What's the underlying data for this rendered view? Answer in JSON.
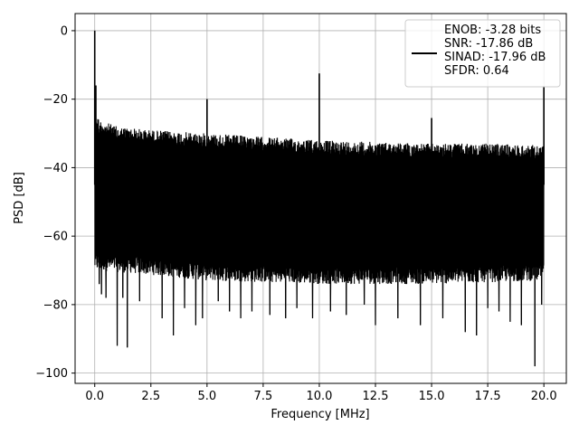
{
  "chart_data": {
    "type": "line",
    "title": "",
    "xlabel": "Frequency [MHz]",
    "ylabel": "PSD [dB]",
    "xlim": [
      -0.875,
      21.0
    ],
    "ylim": [
      -103.0,
      5.0
    ],
    "xticks": [
      0.0,
      2.5,
      5.0,
      7.5,
      10.0,
      12.5,
      15.0,
      17.5,
      20.0
    ],
    "xtick_labels": [
      "0.0",
      "2.5",
      "5.0",
      "7.5",
      "10.0",
      "12.5",
      "15.0",
      "17.5",
      "20.0"
    ],
    "yticks": [
      0,
      -20,
      -40,
      -60,
      -80,
      -100
    ],
    "ytick_labels": [
      "0",
      "−20",
      "−40",
      "−60",
      "−80",
      "−100"
    ],
    "grid": true,
    "legend_position": "top-right",
    "series": [
      {
        "name": "ENOB: -3.28 bits\nSNR: -17.86 dB\nSINAD: -17.96 dB\nSFDR: 0.64",
        "legend_lines": [
          "ENOB: -3.28 bits",
          "SNR: -17.86 dB",
          "SINAD: -17.96 dB",
          "SFDR: 0.64"
        ],
        "color": "#000000",
        "noise_ceiling": [
          [
            0.0,
            -22
          ],
          [
            0.2,
            -25
          ],
          [
            1.0,
            -27
          ],
          [
            2.5,
            -28
          ],
          [
            5.0,
            -29
          ],
          [
            7.5,
            -30
          ],
          [
            10.0,
            -31
          ],
          [
            12.5,
            -31.5
          ],
          [
            15.0,
            -32
          ],
          [
            17.5,
            -32
          ],
          [
            20.0,
            -32.5
          ]
        ],
        "noise_floor": [
          [
            0.0,
            -72
          ],
          [
            2.0,
            -73
          ],
          [
            5.0,
            -75
          ],
          [
            10.0,
            -76
          ],
          [
            15.0,
            -76
          ],
          [
            20.0,
            -75
          ]
        ],
        "spikes": [
          {
            "x": 0.0,
            "y": 0
          },
          {
            "x": 0.05,
            "y": -16
          },
          {
            "x": 5.0,
            "y": -20
          },
          {
            "x": 10.0,
            "y": -12.5
          },
          {
            "x": 15.0,
            "y": -25.5
          },
          {
            "x": 20.0,
            "y": -16.5
          }
        ],
        "dips": [
          {
            "x": 0.2,
            "y": -74
          },
          {
            "x": 0.3,
            "y": -77
          },
          {
            "x": 0.5,
            "y": -78
          },
          {
            "x": 1.0,
            "y": -92
          },
          {
            "x": 1.25,
            "y": -78
          },
          {
            "x": 1.45,
            "y": -92.5
          },
          {
            "x": 2.0,
            "y": -79
          },
          {
            "x": 3.0,
            "y": -84
          },
          {
            "x": 3.5,
            "y": -79
          },
          {
            "x": 3.5,
            "y": -89
          },
          {
            "x": 4.0,
            "y": -81
          },
          {
            "x": 4.5,
            "y": -86
          },
          {
            "x": 4.8,
            "y": -84
          },
          {
            "x": 5.5,
            "y": -79
          },
          {
            "x": 6.0,
            "y": -82
          },
          {
            "x": 6.5,
            "y": -84
          },
          {
            "x": 7.0,
            "y": -82
          },
          {
            "x": 7.8,
            "y": -83
          },
          {
            "x": 8.5,
            "y": -84
          },
          {
            "x": 9.0,
            "y": -81
          },
          {
            "x": 9.7,
            "y": -84
          },
          {
            "x": 10.5,
            "y": -82
          },
          {
            "x": 11.2,
            "y": -83
          },
          {
            "x": 12.0,
            "y": -80
          },
          {
            "x": 12.5,
            "y": -86
          },
          {
            "x": 13.5,
            "y": -84
          },
          {
            "x": 14.5,
            "y": -86
          },
          {
            "x": 15.5,
            "y": -84
          },
          {
            "x": 16.5,
            "y": -88
          },
          {
            "x": 17.0,
            "y": -89
          },
          {
            "x": 17.5,
            "y": -81
          },
          {
            "x": 18.0,
            "y": -82
          },
          {
            "x": 18.5,
            "y": -85
          },
          {
            "x": 19.0,
            "y": -86
          },
          {
            "x": 19.6,
            "y": -98
          },
          {
            "x": 19.9,
            "y": -80
          }
        ]
      }
    ]
  }
}
